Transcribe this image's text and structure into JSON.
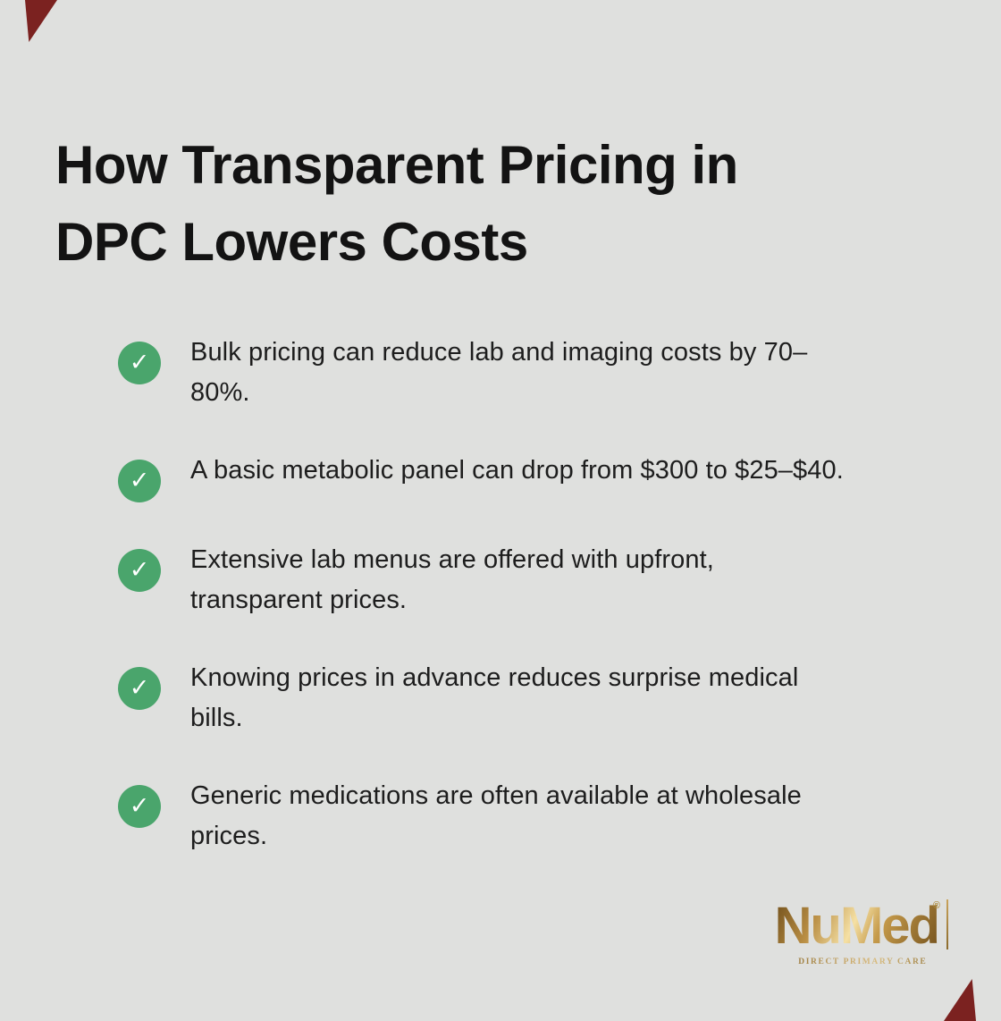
{
  "page": {
    "background_color": "#dfe0de",
    "accent_corner_color": "#7b2220"
  },
  "title": {
    "line1": "How Transparent Pricing in",
    "line2": "DPC Lowers Costs"
  },
  "checklist": {
    "check_color": "#4aa56c",
    "check_icon": "✓",
    "items": [
      {
        "text": "Bulk pricing can reduce lab and imaging costs by 70–80%.",
        "lines": [
          "Bulk pricing can reduce lab and imaging costs by 70–",
          "80%."
        ]
      },
      {
        "text": "A basic metabolic panel can drop from $300 to $25–$40.",
        "lines": [
          "A basic metabolic panel can drop from $300 to $25–$40."
        ]
      },
      {
        "text": "Extensive lab menus are offered with upfront, transparent prices.",
        "lines": [
          "Extensive lab menus are offered with upfront,",
          "transparent prices."
        ]
      },
      {
        "text": "Knowing prices in advance reduces surprise medical bills.",
        "lines": [
          "Knowing prices in advance reduces surprise medical",
          "bills."
        ]
      },
      {
        "text": "Generic medications are often available at wholesale prices.",
        "lines": [
          "Generic medications are often available at wholesale",
          "prices."
        ]
      }
    ]
  },
  "logo": {
    "brand": "NuMed",
    "registered_mark": "®",
    "tagline": "DIRECT PRIMARY CARE",
    "gold_color": "#b08d3e"
  }
}
